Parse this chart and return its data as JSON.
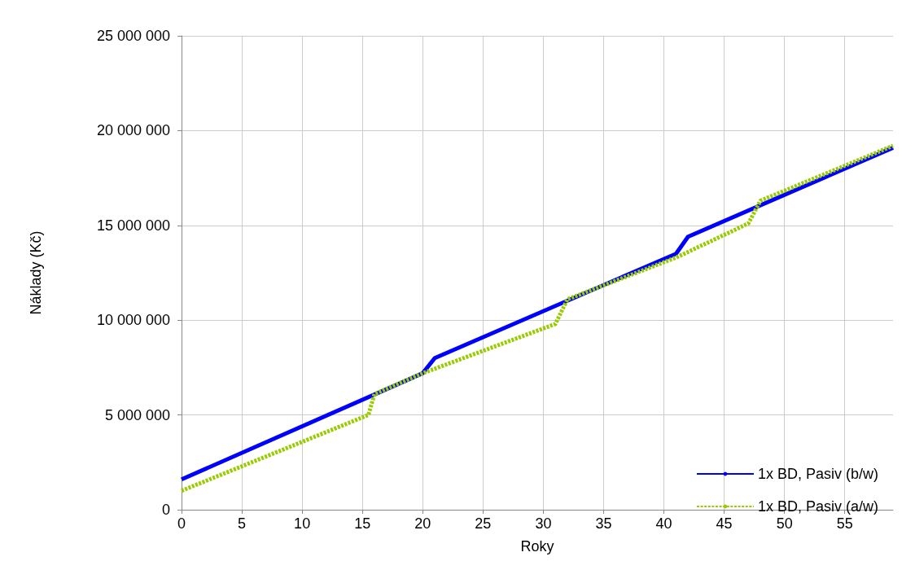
{
  "chart_data": {
    "type": "line",
    "xlabel": "Roky",
    "ylabel": "Náklady (Kč)",
    "xlim": [
      0,
      59
    ],
    "xticks": [
      0,
      5,
      10,
      15,
      20,
      25,
      30,
      35,
      40,
      45,
      50,
      55
    ],
    "ylim": [
      0,
      25000000
    ],
    "yticks": [
      0,
      5000000,
      10000000,
      15000000,
      20000000,
      25000000
    ],
    "grid": true,
    "legend": "bottom right",
    "marker": "none",
    "series": [
      {
        "name": "1x BD, Pasiv (b/w)",
        "color": "#0000ff",
        "line_style": "solid",
        "x": [
          0,
          20,
          21,
          41,
          42,
          59
        ],
        "values": [
          1600000,
          7200000,
          8000000,
          13500000,
          14400000,
          19100000
        ]
      },
      {
        "name": "1x BD, Pasiv (a/w)",
        "color": "#99cc00",
        "line_style": "dashed",
        "x": [
          0,
          15.5,
          16,
          20,
          31,
          32,
          41,
          47,
          48,
          59
        ],
        "values": [
          1000000,
          5000000,
          6100000,
          7200000,
          9800000,
          11100000,
          13300000,
          15100000,
          16300000,
          19200000
        ]
      }
    ]
  }
}
